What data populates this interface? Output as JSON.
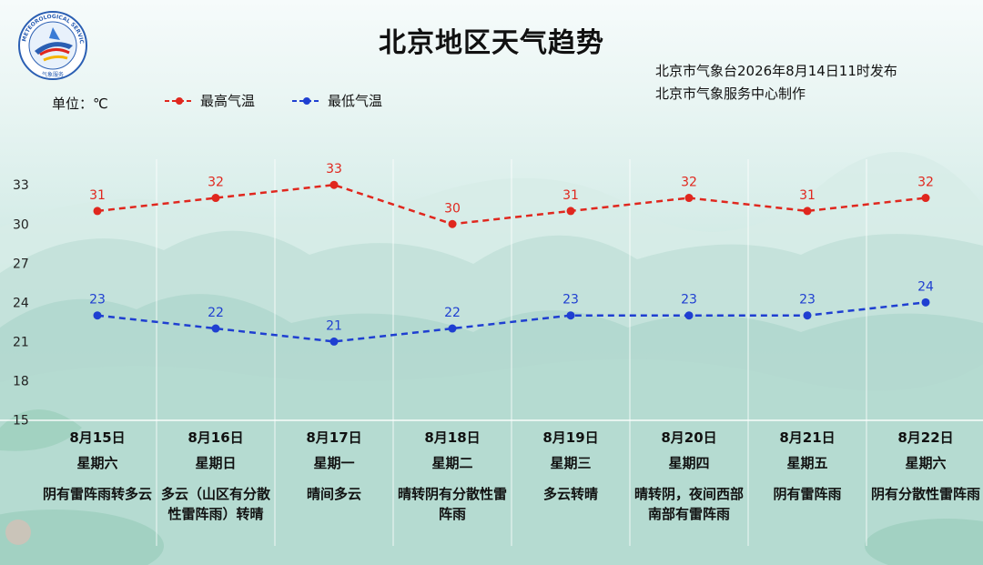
{
  "title": "北京地区天气趋势",
  "publisher": {
    "line1": "北京市气象台2026年8月14日11时发布",
    "line2": "北京市气象服务中心制作"
  },
  "unit_label": "单位：℃",
  "logo": {
    "text": "METEOROLOGICAL SERVICE",
    "subtext": "气象服务"
  },
  "colors": {
    "high": "#e0271e",
    "low": "#1f3fd1",
    "grid": "#ffffff"
  },
  "chart_data": {
    "type": "line",
    "categories": [
      "8月15日",
      "8月16日",
      "8月17日",
      "8月18日",
      "8月19日",
      "8月20日",
      "8月21日",
      "8月22日"
    ],
    "series": [
      {
        "name": "最高气温",
        "values": [
          31,
          32,
          33,
          30,
          31,
          32,
          31,
          32
        ]
      },
      {
        "name": "最低气温",
        "values": [
          23,
          22,
          21,
          22,
          23,
          23,
          23,
          24
        ]
      }
    ],
    "ylim": [
      15,
      33
    ],
    "yticks": [
      15,
      18,
      21,
      24,
      27,
      30,
      33
    ],
    "grid": true,
    "legend_position": "top-left"
  },
  "days": [
    {
      "date": "8月15日",
      "weekday": "星期六",
      "weather": "阴有雷阵雨转多云"
    },
    {
      "date": "8月16日",
      "weekday": "星期日",
      "weather": "多云（山区有分散性雷阵雨）转晴"
    },
    {
      "date": "8月17日",
      "weekday": "星期一",
      "weather": "晴间多云"
    },
    {
      "date": "8月18日",
      "weekday": "星期二",
      "weather": "晴转阴有分散性雷阵雨"
    },
    {
      "date": "8月19日",
      "weekday": "星期三",
      "weather": "多云转晴"
    },
    {
      "date": "8月20日",
      "weekday": "星期四",
      "weather": "晴转阴，夜间西部南部有雷阵雨"
    },
    {
      "date": "8月21日",
      "weekday": "星期五",
      "weather": "阴有雷阵雨"
    },
    {
      "date": "8月22日",
      "weekday": "星期六",
      "weather": "阴有分散性雷阵雨"
    }
  ]
}
